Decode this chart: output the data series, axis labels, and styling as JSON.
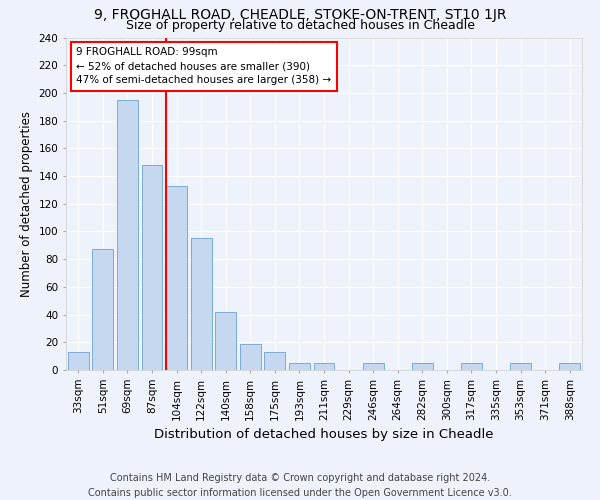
{
  "title1": "9, FROGHALL ROAD, CHEADLE, STOKE-ON-TRENT, ST10 1JR",
  "title2": "Size of property relative to detached houses in Cheadle",
  "xlabel": "Distribution of detached houses by size in Cheadle",
  "ylabel": "Number of detached properties",
  "categories": [
    "33sqm",
    "51sqm",
    "69sqm",
    "87sqm",
    "104sqm",
    "122sqm",
    "140sqm",
    "158sqm",
    "175sqm",
    "193sqm",
    "211sqm",
    "229sqm",
    "246sqm",
    "264sqm",
    "282sqm",
    "300sqm",
    "317sqm",
    "335sqm",
    "353sqm",
    "371sqm",
    "388sqm"
  ],
  "values": [
    13,
    87,
    195,
    148,
    133,
    95,
    42,
    19,
    13,
    5,
    5,
    0,
    5,
    0,
    5,
    0,
    5,
    0,
    5,
    0,
    5
  ],
  "bar_color": "#c5d8f0",
  "bar_edge_color": "#7aadd4",
  "vline_color": "red",
  "annotation_text": "9 FROGHALL ROAD: 99sqm\n← 52% of detached houses are smaller (390)\n47% of semi-detached houses are larger (358) →",
  "annotation_box_color": "white",
  "annotation_box_edge": "red",
  "ylim": [
    0,
    240
  ],
  "yticks": [
    0,
    20,
    40,
    60,
    80,
    100,
    120,
    140,
    160,
    180,
    200,
    220,
    240
  ],
  "footer": "Contains HM Land Registry data © Crown copyright and database right 2024.\nContains public sector information licensed under the Open Government Licence v3.0.",
  "background_color": "#eef2fb",
  "grid_color": "#ffffff",
  "title1_fontsize": 10,
  "title2_fontsize": 9,
  "xlabel_fontsize": 9.5,
  "ylabel_fontsize": 8.5,
  "tick_fontsize": 7.5,
  "footer_fontsize": 7,
  "annotation_fontsize": 7.5
}
